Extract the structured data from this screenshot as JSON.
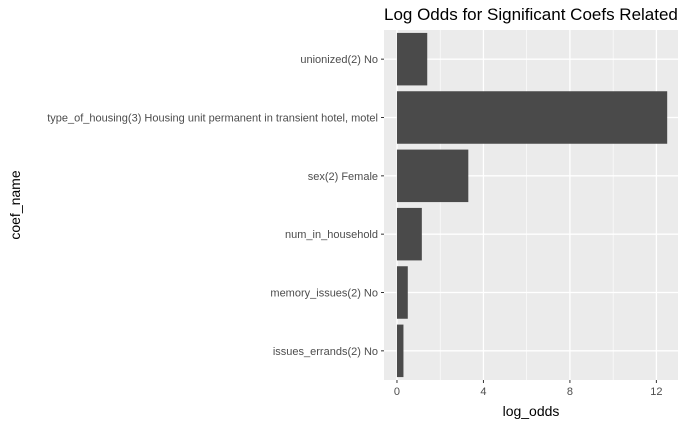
{
  "chart_data": {
    "type": "bar",
    "orientation": "horizontal",
    "title": "Log Odds for Significant Coefs Related",
    "xlabel": "log_odds",
    "ylabel": "coef_name",
    "categories": [
      "unionized(2) No",
      "type_of_housing(3) Housing unit permanent in transient hotel, motel",
      "sex(2) Female",
      "num_in_household",
      "memory_issues(2) No",
      "issues_errands(2) No"
    ],
    "values": [
      1.4,
      12.5,
      3.3,
      1.15,
      0.5,
      0.3
    ],
    "xlim": [
      -0.6,
      13.0
    ],
    "xticks": [
      0,
      4,
      8,
      12
    ],
    "grid": true,
    "legend": "none",
    "colors": {
      "bar": "#4a4a4a",
      "panel": "#ebebeb",
      "grid": "#ffffff"
    }
  }
}
